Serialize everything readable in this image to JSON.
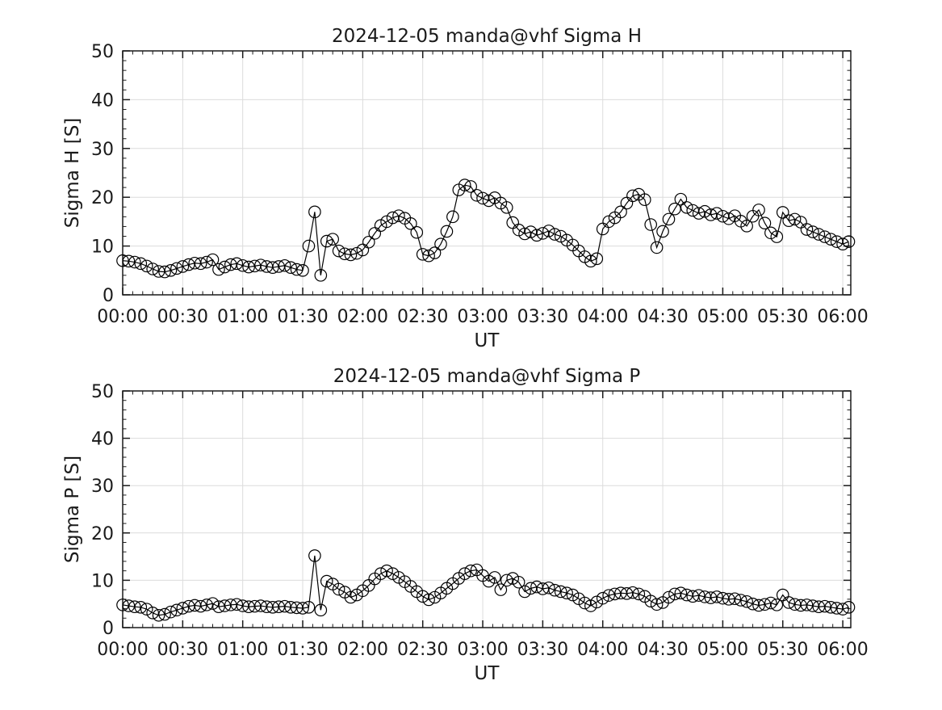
{
  "figure": {
    "background": "#ffffff",
    "text_color": "#1a1a1a",
    "axis_color": "#1a1a1a",
    "grid_color": "#dcdcdc",
    "line_color": "#000000",
    "marker_style": "open-circle"
  },
  "chart_data": [
    {
      "type": "line",
      "title": "2024-12-05  manda@vhf Sigma H",
      "xlabel": "UT",
      "ylabel": "Sigma H [S]",
      "ylim": [
        0,
        50
      ],
      "yticks": [
        0,
        10,
        20,
        30,
        40,
        50
      ],
      "y_minor_step": 2,
      "xlim_minutes": [
        0,
        364
      ],
      "xticks_minutes": [
        0,
        30,
        60,
        90,
        120,
        150,
        180,
        210,
        240,
        270,
        300,
        330,
        360
      ],
      "xtick_labels": [
        "00:00",
        "00:30",
        "01:00",
        "01:30",
        "02:00",
        "02:30",
        "03:00",
        "03:30",
        "04:00",
        "04:30",
        "05:00",
        "05:30",
        "06:00"
      ],
      "x_minor_step_minutes": 5,
      "grid": true,
      "legend": "none",
      "x_minutes": [
        0,
        3,
        6,
        9,
        12,
        15,
        18,
        21,
        24,
        27,
        30,
        33,
        36,
        39,
        42,
        45,
        48,
        51,
        54,
        57,
        60,
        63,
        66,
        69,
        72,
        75,
        78,
        81,
        84,
        87,
        90,
        93,
        96,
        99,
        102,
        105,
        108,
        111,
        114,
        117,
        120,
        123,
        126,
        129,
        132,
        135,
        138,
        141,
        144,
        147,
        150,
        153,
        156,
        159,
        162,
        165,
        168,
        171,
        174,
        177,
        180,
        183,
        186,
        189,
        192,
        195,
        198,
        201,
        204,
        207,
        210,
        213,
        216,
        219,
        222,
        225,
        228,
        231,
        234,
        237,
        240,
        243,
        246,
        249,
        252,
        255,
        258,
        261,
        264,
        267,
        270,
        273,
        276,
        279,
        282,
        285,
        288,
        291,
        294,
        297,
        300,
        303,
        306,
        309,
        312,
        315,
        318,
        321,
        324,
        327,
        330,
        333,
        336,
        339,
        342,
        345,
        348,
        351,
        354,
        357,
        360,
        363
      ],
      "y": [
        7.0,
        6.9,
        6.7,
        6.4,
        5.9,
        5.3,
        4.8,
        4.7,
        5.0,
        5.4,
        5.8,
        6.2,
        6.5,
        6.4,
        6.7,
        7.2,
        5.2,
        5.7,
        6.2,
        6.4,
        6.0,
        5.7,
        5.9,
        6.1,
        5.8,
        5.6,
        5.8,
        6.0,
        5.6,
        5.2,
        5.0,
        10.0,
        17.0,
        4.0,
        11.0,
        11.4,
        9.0,
        8.4,
        8.2,
        8.5,
        9.2,
        10.8,
        12.6,
        14.2,
        15.0,
        15.8,
        16.2,
        15.7,
        14.6,
        12.8,
        8.3,
        8.0,
        8.6,
        10.4,
        13.0,
        16.0,
        21.5,
        22.5,
        22.2,
        20.4,
        19.8,
        19.3,
        19.9,
        18.8,
        17.9,
        14.8,
        13.3,
        12.5,
        12.9,
        12.2,
        12.6,
        13.1,
        12.4,
        12.0,
        11.2,
        10.2,
        9.0,
        7.8,
        6.9,
        7.4,
        13.5,
        15.0,
        15.8,
        17.0,
        18.8,
        20.3,
        20.6,
        19.5,
        14.4,
        9.7,
        13.0,
        15.5,
        17.6,
        19.6,
        17.9,
        17.3,
        16.7,
        17.1,
        16.4,
        16.7,
        16.1,
        15.6,
        16.2,
        15.1,
        14.1,
        16.1,
        17.4,
        14.7,
        12.7,
        11.9,
        16.9,
        15.2,
        15.5,
        14.9,
        13.4,
        12.9,
        12.4,
        11.9,
        11.4,
        10.9,
        10.4,
        10.9
      ]
    },
    {
      "type": "line",
      "title": "2024-12-05  manda@vhf Sigma P",
      "xlabel": "UT",
      "ylabel": "Sigma P [S]",
      "ylim": [
        0,
        50
      ],
      "yticks": [
        0,
        10,
        20,
        30,
        40,
        50
      ],
      "y_minor_step": 2,
      "xlim_minutes": [
        0,
        364
      ],
      "xticks_minutes": [
        0,
        30,
        60,
        90,
        120,
        150,
        180,
        210,
        240,
        270,
        300,
        330,
        360
      ],
      "xtick_labels": [
        "00:00",
        "00:30",
        "01:00",
        "01:30",
        "02:00",
        "02:30",
        "03:00",
        "03:30",
        "04:00",
        "04:30",
        "05:00",
        "05:30",
        "06:00"
      ],
      "x_minor_step_minutes": 5,
      "grid": true,
      "legend": "none",
      "x_minutes": [
        0,
        3,
        6,
        9,
        12,
        15,
        18,
        21,
        24,
        27,
        30,
        33,
        36,
        39,
        42,
        45,
        48,
        51,
        54,
        57,
        60,
        63,
        66,
        69,
        72,
        75,
        78,
        81,
        84,
        87,
        90,
        93,
        96,
        99,
        102,
        105,
        108,
        111,
        114,
        117,
        120,
        123,
        126,
        129,
        132,
        135,
        138,
        141,
        144,
        147,
        150,
        153,
        156,
        159,
        162,
        165,
        168,
        171,
        174,
        177,
        180,
        183,
        186,
        189,
        192,
        195,
        198,
        201,
        204,
        207,
        210,
        213,
        216,
        219,
        222,
        225,
        228,
        231,
        234,
        237,
        240,
        243,
        246,
        249,
        252,
        255,
        258,
        261,
        264,
        267,
        270,
        273,
        276,
        279,
        282,
        285,
        288,
        291,
        294,
        297,
        300,
        303,
        306,
        309,
        312,
        315,
        318,
        321,
        324,
        327,
        330,
        333,
        336,
        339,
        342,
        345,
        348,
        351,
        354,
        357,
        360,
        363
      ],
      "y": [
        4.8,
        4.6,
        4.4,
        4.3,
        3.9,
        3.1,
        2.6,
        2.8,
        3.3,
        3.7,
        4.1,
        4.5,
        4.7,
        4.5,
        4.8,
        5.1,
        4.4,
        4.6,
        4.8,
        4.9,
        4.6,
        4.4,
        4.5,
        4.6,
        4.4,
        4.3,
        4.4,
        4.5,
        4.3,
        4.2,
        4.1,
        4.3,
        15.2,
        3.7,
        9.8,
        9.2,
        8.1,
        7.5,
        6.4,
        6.9,
        7.8,
        8.9,
        10.3,
        11.4,
        12.0,
        11.4,
        10.6,
        9.7,
        8.7,
        7.6,
        6.6,
        5.9,
        6.4,
        7.3,
        8.3,
        9.3,
        10.4,
        11.4,
        12.0,
        12.2,
        11.0,
        9.8,
        10.6,
        8.0,
        10.0,
        10.4,
        9.6,
        7.6,
        8.3,
        8.6,
        8.2,
        8.4,
        7.9,
        7.6,
        7.3,
        6.9,
        6.1,
        5.2,
        4.6,
        5.4,
        6.2,
        6.8,
        7.1,
        7.3,
        7.2,
        7.4,
        7.1,
        6.6,
        5.6,
        4.9,
        5.3,
        6.4,
        7.1,
        7.3,
        6.9,
        6.6,
        6.8,
        6.5,
        6.3,
        6.5,
        6.2,
        6.0,
        6.1,
        5.8,
        5.5,
        5.0,
        4.7,
        4.9,
        5.2,
        4.8,
        6.9,
        5.3,
        4.9,
        4.7,
        4.8,
        4.6,
        4.4,
        4.5,
        4.3,
        4.1,
        3.9,
        4.3
      ]
    }
  ]
}
